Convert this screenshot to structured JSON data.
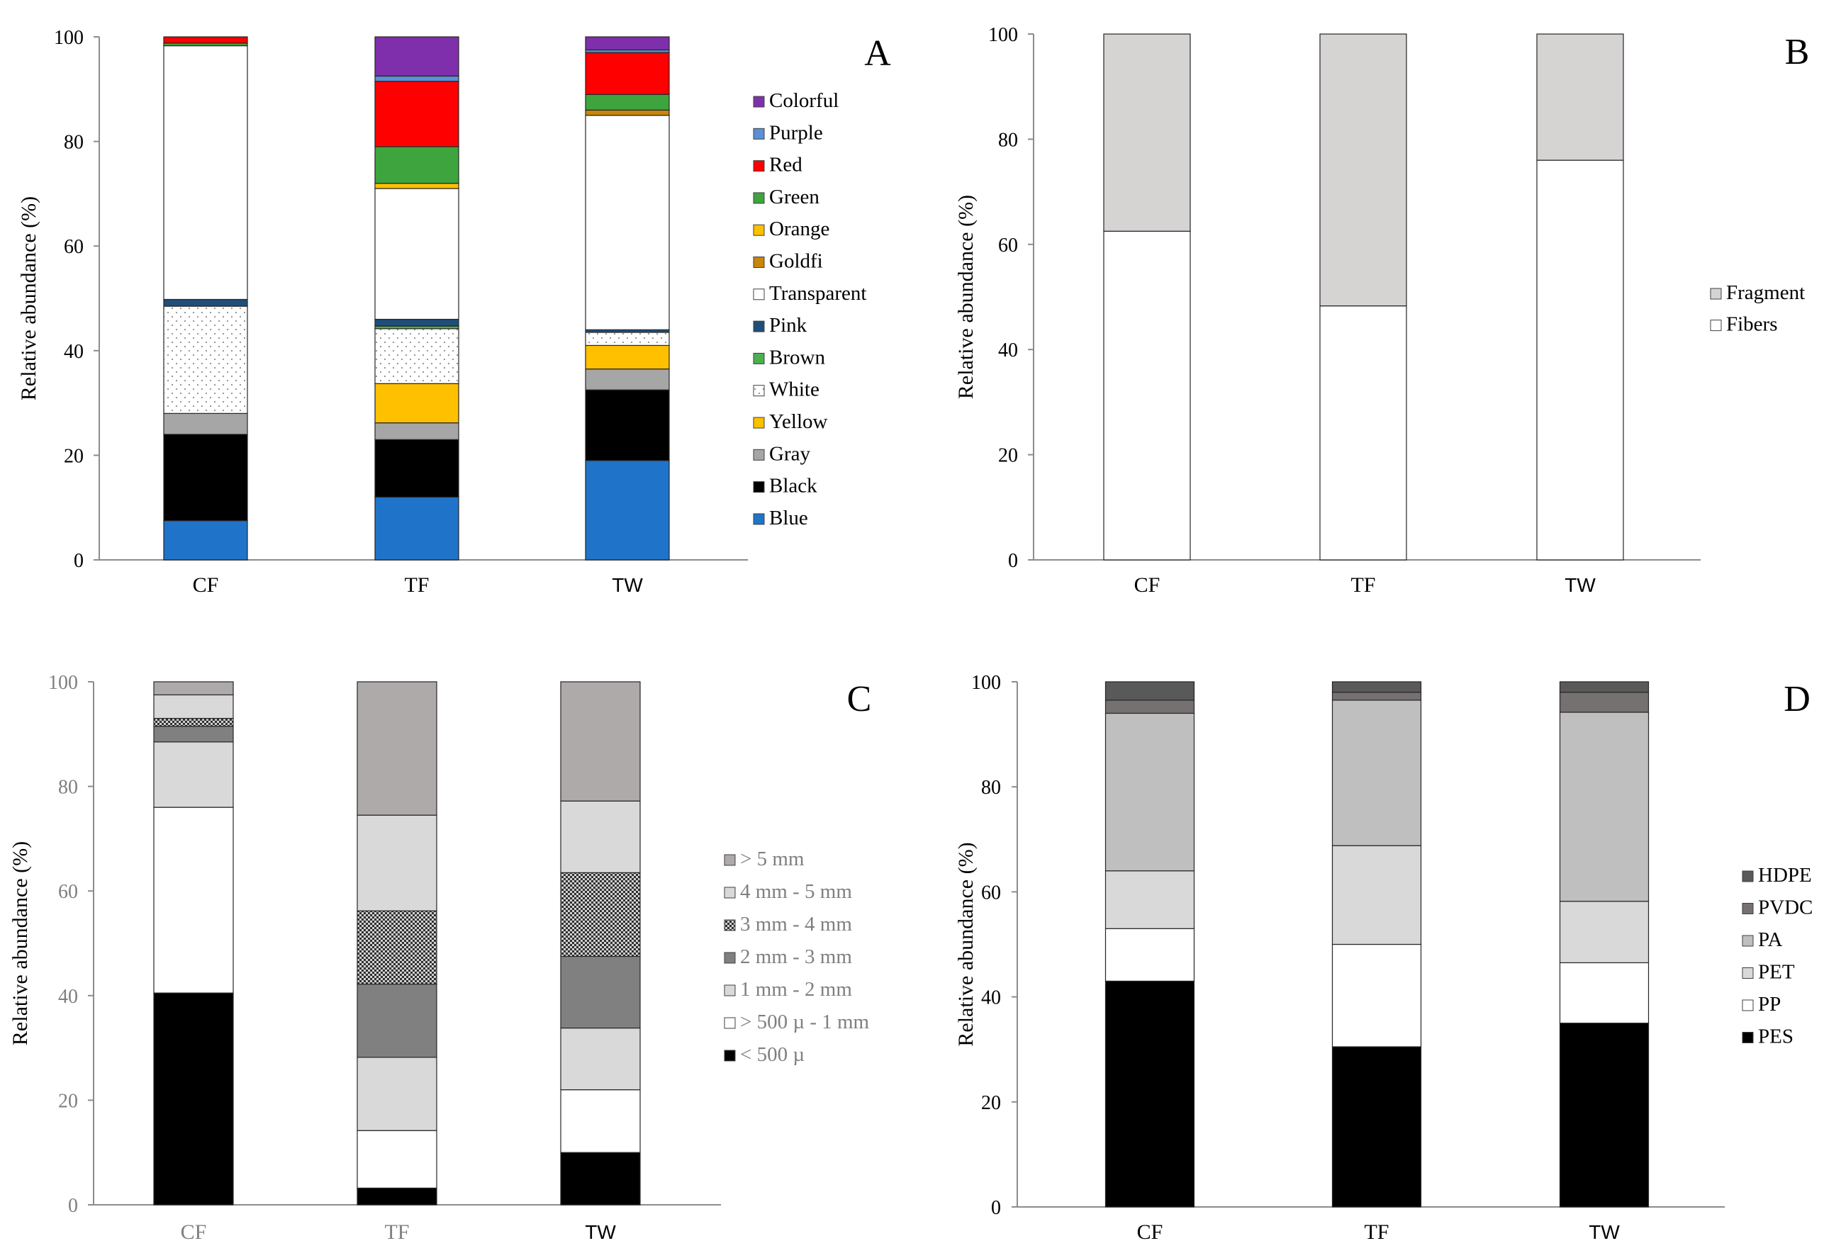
{
  "panel_letters": [
    "A",
    "B",
    "C",
    "D"
  ],
  "chart_data": [
    {
      "id": "A",
      "type": "bar",
      "stacked": true,
      "categories": [
        "CF",
        "TF",
        "TW"
      ],
      "ylabel": "Relative abundance (%)",
      "ylim": [
        0,
        100
      ],
      "yticks": [
        0,
        20,
        40,
        60,
        80,
        100
      ],
      "legend_position": "right",
      "series": [
        {
          "name": "Blue",
          "color": "#1f74c9",
          "values": [
            7.5,
            12,
            19
          ]
        },
        {
          "name": "Black",
          "color": "#000000",
          "values": [
            16.5,
            11,
            13.5
          ]
        },
        {
          "name": "Gray",
          "color": "#a6a6a6",
          "values": [
            4,
            3.2,
            4
          ]
        },
        {
          "name": "Yellow",
          "color": "#ffc000",
          "values": [
            0,
            7.5,
            4.5
          ]
        },
        {
          "name": "White",
          "color": "#ffffff",
          "pattern": "dots",
          "values": [
            20.5,
            10.5,
            2.5
          ]
        },
        {
          "name": "Brown",
          "color": "#4caf50",
          "values": [
            0,
            0.5,
            0
          ]
        },
        {
          "name": "Pink",
          "color": "#1f4e79",
          "values": [
            1.3,
            1.3,
            0.5
          ]
        },
        {
          "name": "Transparent",
          "color": "#ffffff",
          "values": [
            48.5,
            25,
            41
          ]
        },
        {
          "name": "Goldfi",
          "color": "#c8860a",
          "values": [
            0,
            0,
            1
          ]
        },
        {
          "name": "Orange",
          "color": "#ffc000",
          "values": [
            0,
            1,
            0
          ]
        },
        {
          "name": "Green",
          "color": "#3ea53e",
          "values": [
            0.5,
            7,
            3
          ]
        },
        {
          "name": "Red",
          "color": "#ff0000",
          "values": [
            1.2,
            12.5,
            8
          ]
        },
        {
          "name": "Purple",
          "color": "#5b8fd6",
          "values": [
            0,
            1,
            0.5
          ]
        },
        {
          "name": "Colorful",
          "color": "#7f2fab",
          "values": [
            0,
            7.5,
            2.5
          ]
        }
      ]
    },
    {
      "id": "B",
      "type": "bar",
      "stacked": true,
      "categories": [
        "CF",
        "TF",
        "TW"
      ],
      "ylabel": "Relative abundance (%)",
      "ylim": [
        0,
        100
      ],
      "yticks": [
        0,
        20,
        40,
        60,
        80,
        100
      ],
      "legend_position": "right",
      "series": [
        {
          "name": "Fibers",
          "color": "#ffffff",
          "values": [
            62.5,
            48.3,
            76
          ]
        },
        {
          "name": "Fragment",
          "color": "#d6d3d3",
          "values": [
            37.5,
            51.7,
            24
          ]
        }
      ]
    },
    {
      "id": "C",
      "type": "bar",
      "stacked": true,
      "categories": [
        "CF",
        "TF",
        "TW"
      ],
      "ylabel": "Relative abundance (%)",
      "ylim": [
        0,
        100
      ],
      "yticks": [
        0,
        20,
        40,
        60,
        80,
        100
      ],
      "legend_position": "right",
      "series": [
        {
          "name": "< 500 µ",
          "color": "#000000",
          "values": [
            40.5,
            3.2,
            10
          ]
        },
        {
          "name": "> 500 µ - 1 mm",
          "color": "#ffffff",
          "values": [
            35.5,
            11,
            12
          ]
        },
        {
          "name": "1 mm - 2 mm",
          "color": "#d9d9d9",
          "values": [
            12.5,
            14,
            11.8
          ]
        },
        {
          "name": "2 mm - 3 mm",
          "color": "#808080",
          "values": [
            3,
            14,
            13.7
          ]
        },
        {
          "name": "3 mm - 4 mm",
          "color": "#777777",
          "pattern": "checker",
          "values": [
            1.5,
            14,
            16
          ]
        },
        {
          "name": "4 mm - 5 mm",
          "color": "#d9d9d9",
          "values": [
            4.5,
            18.3,
            13.7
          ]
        },
        {
          "name": "> 5 mm",
          "color": "#aeaaaa",
          "values": [
            2.5,
            25.5,
            22.8
          ]
        }
      ]
    },
    {
      "id": "D",
      "type": "bar",
      "stacked": true,
      "categories": [
        "CF",
        "TF",
        "TW"
      ],
      "ylabel": "Relative abundance (%)",
      "ylim": [
        0,
        100
      ],
      "yticks": [
        0,
        20,
        40,
        60,
        80,
        100
      ],
      "legend_position": "right",
      "series": [
        {
          "name": "PES",
          "color": "#000000",
          "values": [
            43,
            30.5,
            35
          ]
        },
        {
          "name": "PP",
          "color": "#ffffff",
          "values": [
            10,
            19.5,
            11.5
          ]
        },
        {
          "name": "PET",
          "color": "#d9d9d9",
          "values": [
            11,
            18.8,
            11.7
          ]
        },
        {
          "name": "PA",
          "color": "#bfbfbf",
          "values": [
            30,
            27.7,
            36
          ]
        },
        {
          "name": "PVDC",
          "color": "#767171",
          "values": [
            2.5,
            1.5,
            3.8
          ]
        },
        {
          "name": "HDPE",
          "color": "#595959",
          "values": [
            3.5,
            2,
            2
          ]
        }
      ]
    }
  ]
}
